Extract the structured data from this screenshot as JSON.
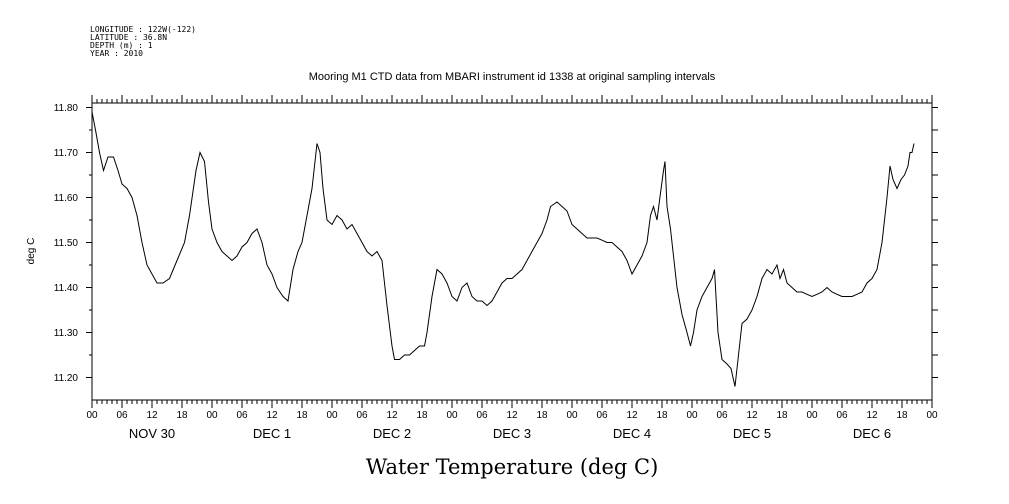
{
  "meta": {
    "longitude": "LONGITUDE : 122W(-122)",
    "latitude": "LATITUDE : 36.8N",
    "depth": "DEPTH (m) : 1",
    "year": "YEAR : 2010"
  },
  "chart_data": {
    "type": "line",
    "title": "Mooring M1 CTD data from MBARI instrument id 1338 at original sampling intervals",
    "xlabel": "Water Temperature (deg C)",
    "ylabel": "deg C",
    "xlim": [
      0,
      168
    ],
    "ylim": [
      11.15,
      11.81
    ],
    "y_ticks": [
      11.2,
      11.3,
      11.4,
      11.5,
      11.6,
      11.7,
      11.8
    ],
    "y_tick_labels": [
      "11.20",
      "11.30",
      "11.40",
      "11.50",
      "11.60",
      "11.70",
      "11.80"
    ],
    "x_ticks": [
      0,
      6,
      12,
      18,
      24,
      30,
      36,
      42,
      48,
      54,
      60,
      66,
      72,
      78,
      84,
      90,
      96,
      102,
      108,
      114,
      120,
      126,
      132,
      138,
      144,
      150,
      156,
      162,
      168
    ],
    "x_tick_labels": [
      "00",
      "06",
      "12",
      "18",
      "00",
      "06",
      "12",
      "18",
      "00",
      "06",
      "12",
      "18",
      "00",
      "06",
      "12",
      "18",
      "00",
      "06",
      "12",
      "18",
      "00",
      "06",
      "12",
      "18",
      "00",
      "06",
      "12",
      "18",
      "00"
    ],
    "day_labels": [
      {
        "label": "NOV 30",
        "x": 12
      },
      {
        "label": "DEC  1",
        "x": 36
      },
      {
        "label": "DEC  2",
        "x": 60
      },
      {
        "label": "DEC  3",
        "x": 84
      },
      {
        "label": "DEC  4",
        "x": 108
      },
      {
        "label": "DEC  5",
        "x": 132
      },
      {
        "label": "DEC  6",
        "x": 156
      }
    ],
    "grid": false,
    "series": [
      {
        "color": "#000000",
        "points": [
          [
            0,
            11.79
          ],
          [
            0.7,
            11.75
          ],
          [
            1.5,
            11.7
          ],
          [
            2.3,
            11.66
          ],
          [
            3.2,
            11.69
          ],
          [
            4.3,
            11.69
          ],
          [
            5.2,
            11.66
          ],
          [
            6,
            11.63
          ],
          [
            7,
            11.62
          ],
          [
            8,
            11.6
          ],
          [
            9,
            11.56
          ],
          [
            10,
            11.5
          ],
          [
            11,
            11.45
          ],
          [
            12,
            11.43
          ],
          [
            13,
            11.41
          ],
          [
            14.2,
            11.41
          ],
          [
            15.5,
            11.42
          ],
          [
            17,
            11.46
          ],
          [
            18.5,
            11.5
          ],
          [
            19.5,
            11.56
          ],
          [
            20.8,
            11.66
          ],
          [
            21.6,
            11.7
          ],
          [
            22.5,
            11.68
          ],
          [
            23.3,
            11.59
          ],
          [
            24,
            11.53
          ],
          [
            25,
            11.5
          ],
          [
            26,
            11.48
          ],
          [
            27,
            11.47
          ],
          [
            28,
            11.46
          ],
          [
            29,
            11.47
          ],
          [
            30,
            11.49
          ],
          [
            31,
            11.5
          ],
          [
            32,
            11.52
          ],
          [
            33,
            11.53
          ],
          [
            34,
            11.5
          ],
          [
            35,
            11.45
          ],
          [
            36,
            11.43
          ],
          [
            37,
            11.4
          ],
          [
            38.2,
            11.38
          ],
          [
            39.2,
            11.37
          ],
          [
            40.2,
            11.44
          ],
          [
            41.2,
            11.48
          ],
          [
            42,
            11.5
          ],
          [
            43,
            11.56
          ],
          [
            44,
            11.62
          ],
          [
            45,
            11.72
          ],
          [
            45.6,
            11.7
          ],
          [
            46.2,
            11.62
          ],
          [
            47,
            11.55
          ],
          [
            48,
            11.54
          ],
          [
            49,
            11.56
          ],
          [
            50,
            11.55
          ],
          [
            51,
            11.53
          ],
          [
            52,
            11.54
          ],
          [
            53,
            11.52
          ],
          [
            54,
            11.5
          ],
          [
            55,
            11.48
          ],
          [
            56,
            11.47
          ],
          [
            57,
            11.48
          ],
          [
            58,
            11.46
          ],
          [
            59,
            11.36
          ],
          [
            60,
            11.27
          ],
          [
            60.5,
            11.24
          ],
          [
            61.5,
            11.24
          ],
          [
            62.5,
            11.25
          ],
          [
            63.5,
            11.25
          ],
          [
            64.5,
            11.26
          ],
          [
            65.5,
            11.27
          ],
          [
            66.5,
            11.27
          ],
          [
            67,
            11.3
          ],
          [
            68,
            11.38
          ],
          [
            69,
            11.44
          ],
          [
            70,
            11.43
          ],
          [
            71,
            11.41
          ],
          [
            72,
            11.38
          ],
          [
            73,
            11.37
          ],
          [
            74,
            11.4
          ],
          [
            75,
            11.41
          ],
          [
            76,
            11.38
          ],
          [
            77,
            11.37
          ],
          [
            78,
            11.37
          ],
          [
            79,
            11.36
          ],
          [
            80,
            11.37
          ],
          [
            81,
            11.39
          ],
          [
            82,
            11.41
          ],
          [
            83,
            11.42
          ],
          [
            84,
            11.42
          ],
          [
            85,
            11.43
          ],
          [
            86,
            11.44
          ],
          [
            87,
            11.46
          ],
          [
            88,
            11.48
          ],
          [
            89,
            11.5
          ],
          [
            90,
            11.52
          ],
          [
            91,
            11.55
          ],
          [
            91.7,
            11.58
          ],
          [
            93,
            11.59
          ],
          [
            94,
            11.58
          ],
          [
            95,
            11.57
          ],
          [
            96,
            11.54
          ],
          [
            97,
            11.53
          ],
          [
            98,
            11.52
          ],
          [
            99,
            11.51
          ],
          [
            100,
            11.51
          ],
          [
            101,
            11.51
          ],
          [
            102,
            11.505
          ],
          [
            103,
            11.5
          ],
          [
            104,
            11.5
          ],
          [
            105,
            11.49
          ],
          [
            106,
            11.48
          ],
          [
            107,
            11.46
          ],
          [
            108,
            11.43
          ],
          [
            109,
            11.45
          ],
          [
            110,
            11.47
          ],
          [
            111,
            11.5
          ],
          [
            111.7,
            11.56
          ],
          [
            112.3,
            11.58
          ],
          [
            113,
            11.55
          ],
          [
            113.7,
            11.61
          ],
          [
            114.3,
            11.66
          ],
          [
            114.6,
            11.68
          ],
          [
            115,
            11.58
          ],
          [
            115.7,
            11.53
          ],
          [
            116.3,
            11.47
          ],
          [
            117,
            11.4
          ],
          [
            118,
            11.34
          ],
          [
            119,
            11.3
          ],
          [
            119.7,
            11.27
          ],
          [
            120.3,
            11.3
          ],
          [
            121,
            11.35
          ],
          [
            122,
            11.38
          ],
          [
            123,
            11.4
          ],
          [
            124,
            11.42
          ],
          [
            124.5,
            11.44
          ],
          [
            125.2,
            11.3
          ],
          [
            126,
            11.24
          ],
          [
            127,
            11.23
          ],
          [
            127.8,
            11.22
          ],
          [
            128.2,
            11.2
          ],
          [
            128.6,
            11.18
          ],
          [
            129.3,
            11.25
          ],
          [
            130,
            11.32
          ],
          [
            131,
            11.33
          ],
          [
            132,
            11.35
          ],
          [
            133,
            11.38
          ],
          [
            134,
            11.42
          ],
          [
            135,
            11.44
          ],
          [
            136,
            11.43
          ],
          [
            137,
            11.45
          ],
          [
            137.6,
            11.42
          ],
          [
            138.3,
            11.44
          ],
          [
            139,
            11.41
          ],
          [
            140,
            11.4
          ],
          [
            141,
            11.39
          ],
          [
            142,
            11.39
          ],
          [
            143,
            11.385
          ],
          [
            144,
            11.38
          ],
          [
            145,
            11.385
          ],
          [
            146,
            11.39
          ],
          [
            147,
            11.4
          ],
          [
            148,
            11.39
          ],
          [
            149,
            11.385
          ],
          [
            150,
            11.38
          ],
          [
            151,
            11.38
          ],
          [
            152,
            11.38
          ],
          [
            153,
            11.385
          ],
          [
            154,
            11.39
          ],
          [
            155,
            11.41
          ],
          [
            156,
            11.42
          ],
          [
            157,
            11.44
          ],
          [
            158,
            11.5
          ],
          [
            159,
            11.6
          ],
          [
            159.6,
            11.67
          ],
          [
            160.2,
            11.64
          ],
          [
            161,
            11.62
          ],
          [
            161.8,
            11.64
          ],
          [
            162.5,
            11.65
          ],
          [
            163.2,
            11.67
          ],
          [
            163.6,
            11.7
          ],
          [
            164,
            11.7
          ],
          [
            164.4,
            11.72
          ]
        ]
      }
    ]
  }
}
